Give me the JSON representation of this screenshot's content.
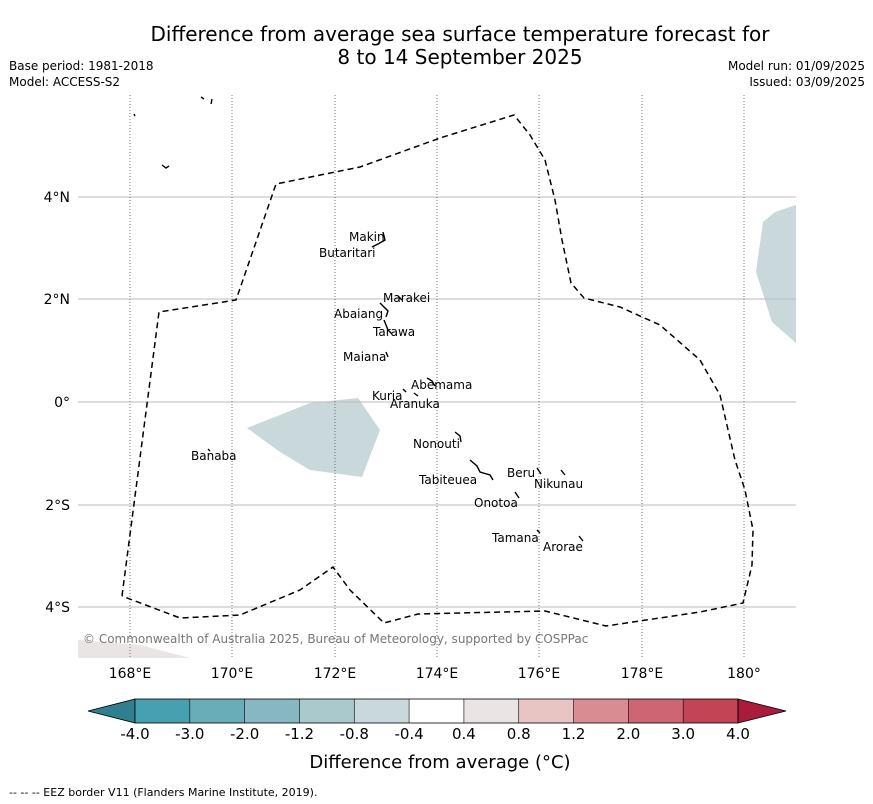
{
  "title_line1": "Difference from average sea surface temperature forecast for",
  "title_line2": "8 to 14 September 2025",
  "meta_left": [
    "Base period: 1981-2018",
    "Model: ACCESS-S2"
  ],
  "meta_right": [
    "Model run: 01/09/2025",
    "Issued: 03/09/2025"
  ],
  "x_ticks": [
    "168°E",
    "170°E",
    "172°E",
    "174°E",
    "176°E",
    "178°E",
    "180°"
  ],
  "y_ticks": [
    "4°N",
    "2°N",
    "0°",
    "2°S",
    "4°S"
  ],
  "islands": [
    "Makin",
    "Butaritari",
    "Marakei",
    "Abaiang",
    "Tarawa",
    "Maiana",
    "Abemama",
    "Kuria",
    "Aranuka",
    "Nonouti",
    "Banaba",
    "Tabiteuea",
    "Beru",
    "Nikunau",
    "Onotoa",
    "Tamana",
    "Arorae"
  ],
  "copyright": "© Commonwealth of Australia 2025, Bureau of Meteorology, supported by COSPPac",
  "colorbar": {
    "labels": [
      "-4.0",
      "-3.0",
      "-2.0",
      "-1.2",
      "-0.8",
      "-0.4",
      "0.4",
      "0.8",
      "1.2",
      "2.0",
      "3.0",
      "4.0"
    ],
    "colors": [
      "#2f7f8f",
      "#46a0b0",
      "#69adb9",
      "#87b7c1",
      "#a9c9cd",
      "#c9d8db",
      "#ffffff",
      "#ebe4e4",
      "#e8c5c3",
      "#d98d93",
      "#cd6572",
      "#c24455",
      "#a91c3c"
    ],
    "title": "Difference from average (°C)"
  },
  "footer": "--  --  -- EEZ border V11 (Flanders Marine Institute, 2019)."
}
